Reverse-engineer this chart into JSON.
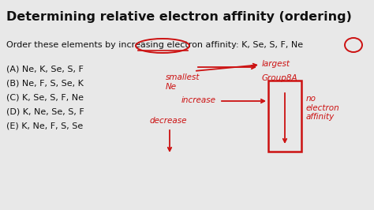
{
  "title": "Determining relative electron affinity (ordering)",
  "question": "Order these elements by increasing electron affinity: K, Se, S, F, Ne",
  "options": [
    "(A) Ne, K, Se, S, F",
    "(B) Ne, F, S, Se, K",
    "(C) K, Se, S, F, Ne",
    "(D) K, Ne, Se, S, F",
    "(E) K, Ne, F, S, Se"
  ],
  "bg_color": "#e8e8e8",
  "text_color": "#111111",
  "red_color": "#cc1111",
  "font_size_title": 11.5,
  "font_size_body": 8.0,
  "font_size_annot": 7.5
}
